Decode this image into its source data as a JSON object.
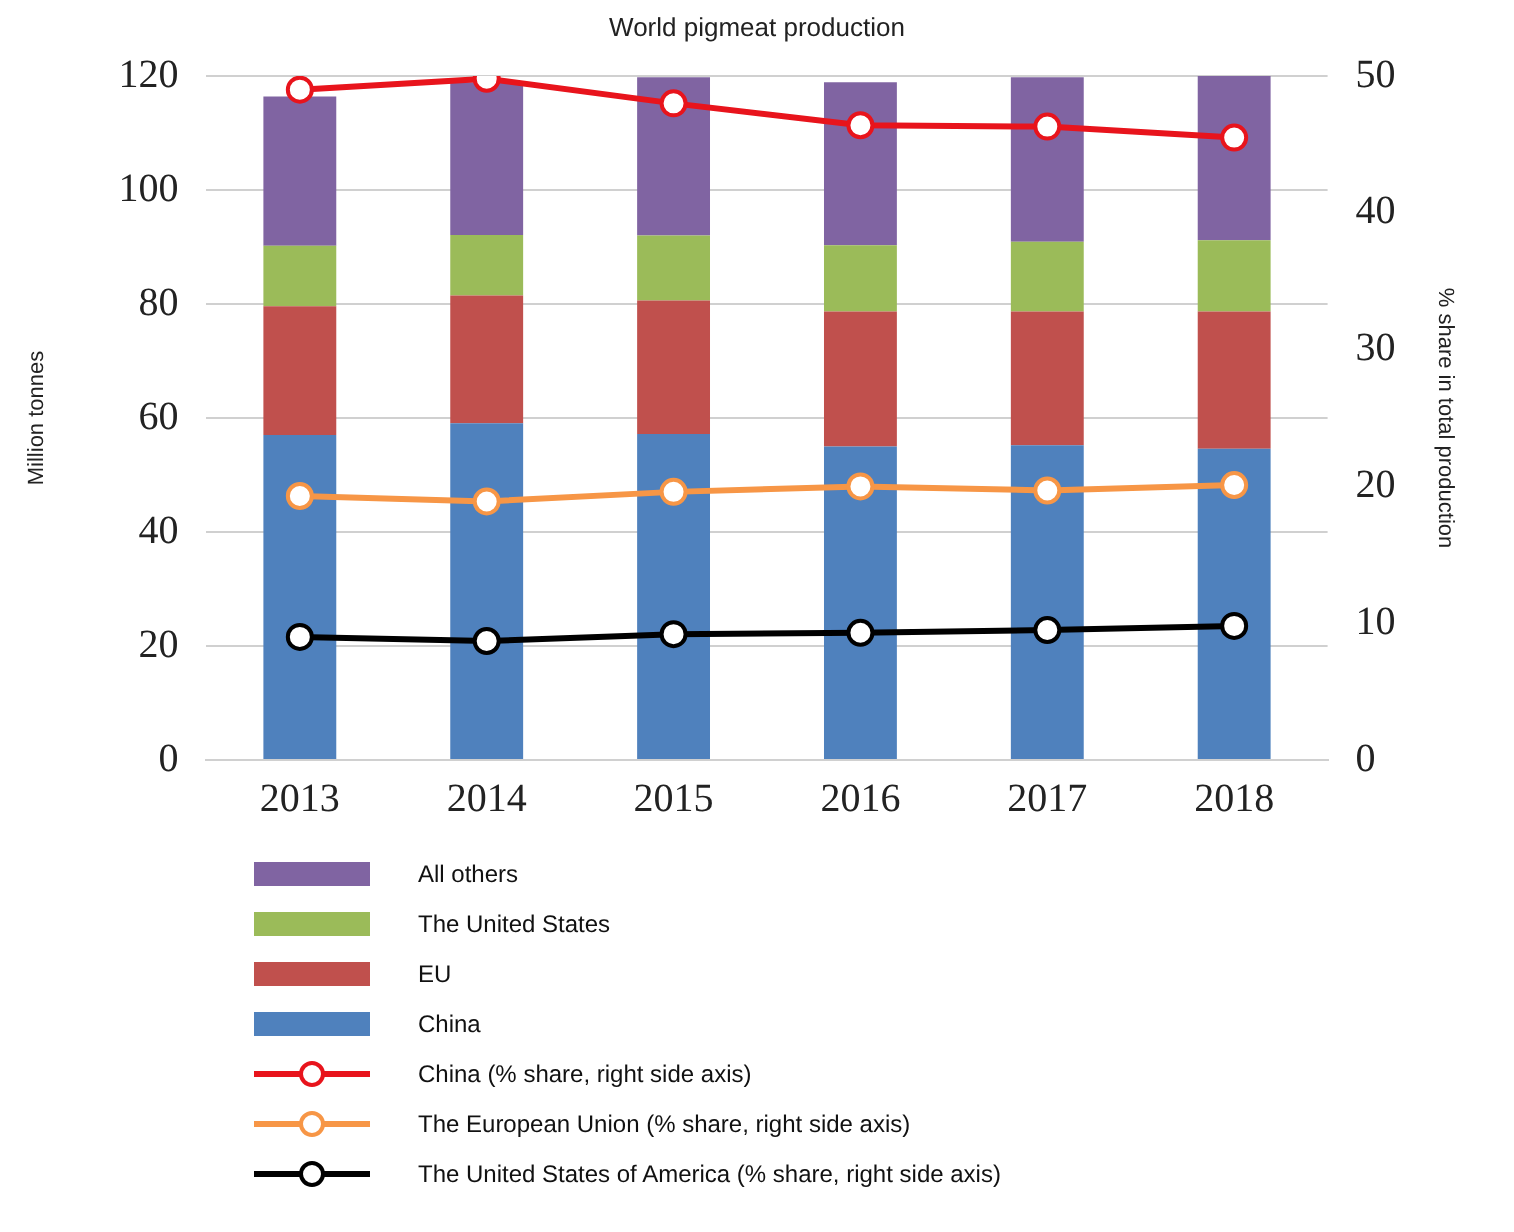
{
  "chart_data": {
    "type": "bar",
    "title": "World pigmeat production",
    "ylabel": "Million tonnes",
    "y2label": "% share in total production",
    "categories": [
      "2013",
      "2014",
      "2015",
      "2016",
      "2017",
      "2018"
    ],
    "stacked": true,
    "series": [
      {
        "name": "China",
        "color": "#4f81bd",
        "values": [
          57.0,
          59.1,
          57.2,
          55.0,
          55.2,
          54.6
        ]
      },
      {
        "name": "EU",
        "color": "#c0504d",
        "values": [
          22.6,
          22.4,
          23.4,
          23.7,
          23.5,
          24.1
        ]
      },
      {
        "name": "The United States",
        "color": "#9bbb59",
        "values": [
          10.6,
          10.6,
          11.4,
          11.6,
          12.2,
          12.5
        ]
      },
      {
        "name": "All others",
        "color": "#8064a2",
        "values": [
          26.2,
          26.8,
          27.8,
          28.6,
          28.9,
          28.8
        ]
      },
      {
        "name": "China (% share, right side axis)",
        "type": "line",
        "axis": "y2",
        "color": "#e8141c",
        "values": [
          49.0,
          49.8,
          48.0,
          46.4,
          46.3,
          45.5
        ]
      },
      {
        "name": "The European Union (% share, right side axis)",
        "type": "line",
        "axis": "y2",
        "color": "#f79646",
        "values": [
          19.3,
          18.9,
          19.6,
          20.0,
          19.7,
          20.1
        ]
      },
      {
        "name": "The United States of America (% share, right side axis)",
        "type": "line",
        "axis": "y2",
        "color": "#000000",
        "values": [
          9.0,
          8.7,
          9.2,
          9.3,
          9.5,
          9.8
        ]
      }
    ],
    "ylim": [
      0,
      120
    ],
    "yticks": [
      0,
      20,
      40,
      60,
      80,
      100,
      120
    ],
    "y2lim": [
      0,
      50
    ],
    "y2ticks": [
      0,
      10,
      20,
      30,
      40,
      50
    ],
    "grid": "y",
    "legend": "bottom",
    "marker": "circle"
  }
}
